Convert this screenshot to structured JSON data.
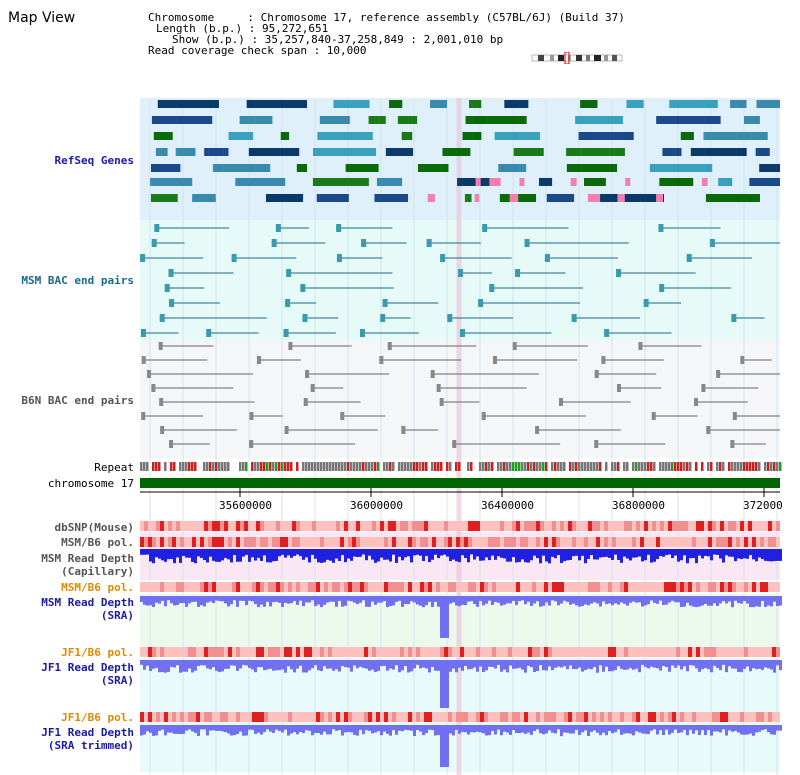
{
  "title": "Map View",
  "info": {
    "chromosome_line": "Chromosome     : Chromosome 17, reference assembly (C57BL/6J) (Build 37)",
    "length_line": "Length (b.p.) : 95,272,651",
    "show_line": "Show (b.p.) : 35,257,840-37,258,849 : 2,001,010 bp",
    "coverage_line": "Read coverage check span : 10,000"
  },
  "tracks": {
    "refseq": "RefSeq Genes",
    "msm_bac": "MSM BAC end pairs",
    "b6n_bac": "B6N BAC end pairs",
    "repeat": "Repeat",
    "chromosome": "chromosome 17",
    "dbsnp": "dbSNP(Mouse)",
    "msm_b6_pol_cap": "MSM/B6 pol.",
    "msm_depth_cap_1": "MSM Read Depth",
    "msm_depth_cap_2": "(Capillary)",
    "msm_b6_pol_sra": "MSM/B6 pol.",
    "msm_depth_sra_1": "MSM Read Depth",
    "msm_depth_sra_2": "(SRA)",
    "jf1_b6_pol_1": "JF1/B6 pol.",
    "jf1_depth_1": "JF1 Read Depth",
    "jf1_depth_2": "(SRA)",
    "jf1_b6_pol_2": "JF1/B6 pol.",
    "jf1_trim_1": "JF1 Read Depth",
    "jf1_trim_2": "(SRA trimmed)"
  },
  "ruler": {
    "ticks": [
      "35600000",
      "36000000",
      "36400000",
      "36800000",
      "372000"
    ]
  },
  "colors": {
    "refseq_bg": "#dff0fa",
    "msm_bg": "#e6faf8",
    "b6n_bg": "#f4f6f8",
    "chrom_bar": "#006400",
    "depth_blue": "#2020e0",
    "depth_light": "#7070f0",
    "pol_red": "#e02020",
    "pol_pink": "#ffc0c0"
  }
}
